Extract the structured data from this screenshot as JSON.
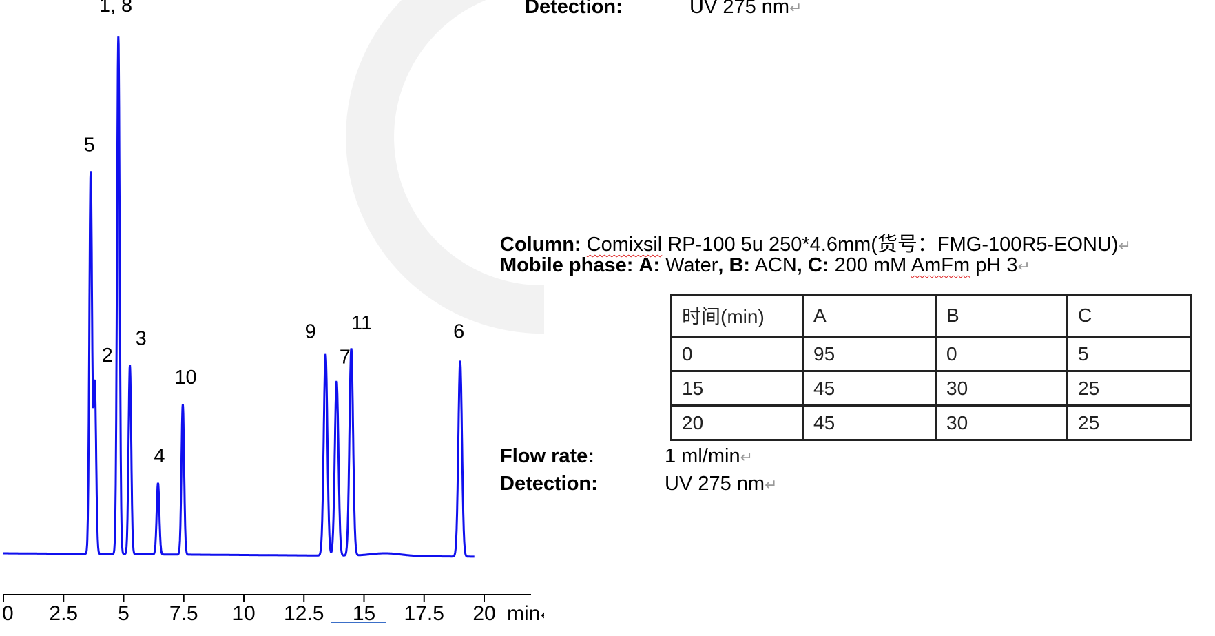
{
  "pilcrow": "↵",
  "top_detection": {
    "label": "Detection:",
    "value": "UV 275 nm"
  },
  "column": {
    "label": "Column:",
    "name": "Comixsil",
    "value": " RP-100 5u 250*4.6mm(货号：FMG-100R5-EONU)"
  },
  "mobile_phase": {
    "label": "Mobile phase:",
    "a_label": "A:",
    "a_value": " Water",
    "b_label": "B:",
    "b_value": " ACN",
    "c_label": "C:",
    "c_value": " 200 mM ",
    "c_squiggle": "AmFm",
    "c_tail": " pH 3"
  },
  "gradient_table": {
    "headers": [
      "时间(min)",
      "A",
      "B",
      "C"
    ],
    "rows": [
      [
        "0",
        "95",
        "0",
        "5"
      ],
      [
        "15",
        "45",
        "30",
        "25"
      ],
      [
        "20",
        "45",
        "30",
        "25"
      ]
    ]
  },
  "flow_rate": {
    "label": "Flow rate:",
    "value": "1 ml/min"
  },
  "detection": {
    "label": "Detection:",
    "value": "UV 275 nm"
  },
  "colors": {
    "trace": "#1010ee",
    "text": "#000000",
    "table_border": "#222222"
  },
  "chart_data": {
    "type": "line",
    "title": "",
    "xlabel": "min",
    "ylabel": "",
    "xlim": [
      0,
      21
    ],
    "x_ticks": [
      0,
      2.5,
      5,
      7.5,
      10,
      12.5,
      15,
      17.5,
      20
    ],
    "x_tick_labels": [
      "0",
      "2.5",
      "5",
      "7.5",
      "10",
      "12.5",
      "15",
      "17.5",
      "20"
    ],
    "y_axis_shown": false,
    "grid": false,
    "peaks": [
      {
        "label": "5",
        "time": 3.63,
        "relative_height": 73.6
      },
      {
        "label": "2",
        "time": 3.8,
        "relative_height": 33.0
      },
      {
        "label": "1, 8",
        "time": 4.78,
        "relative_height": 100
      },
      {
        "label": "3",
        "time": 5.26,
        "relative_height": 36.5
      },
      {
        "label": "4",
        "time": 6.43,
        "relative_height": 13.8
      },
      {
        "label": "10",
        "time": 7.46,
        "relative_height": 29.0
      },
      {
        "label": "9",
        "time": 13.4,
        "relative_height": 38.9
      },
      {
        "label": "7",
        "time": 13.86,
        "relative_height": 33.7
      },
      {
        "label": "11",
        "time": 14.47,
        "relative_height": 40.0
      },
      {
        "label": "6",
        "time": 19.0,
        "relative_height": 37.8
      }
    ]
  }
}
